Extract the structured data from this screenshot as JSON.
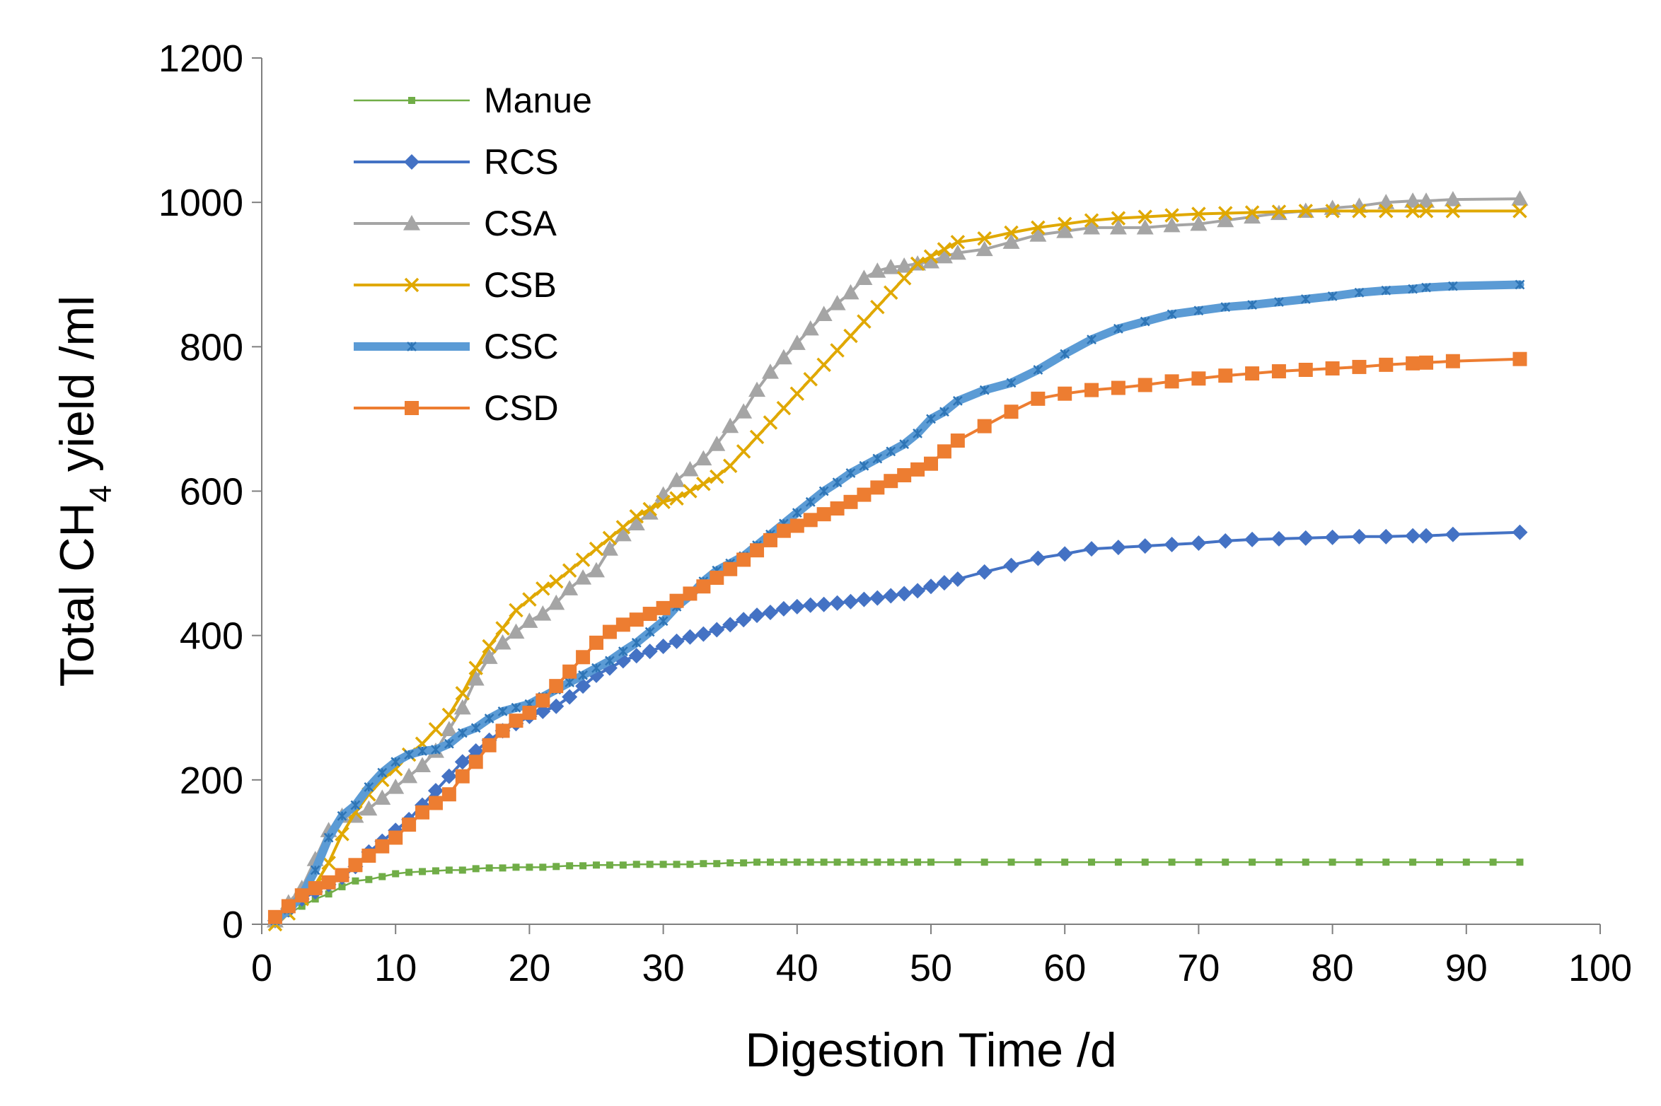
{
  "chart_data": {
    "type": "line",
    "title": "",
    "xlabel": "Digestion Time  /d",
    "ylabel_parts": {
      "main": "Total CH",
      "sub": "4",
      "rest": " yield /ml"
    },
    "xlim": [
      0,
      100
    ],
    "ylim": [
      0,
      1200
    ],
    "xticks": [
      0,
      10,
      20,
      30,
      40,
      50,
      60,
      70,
      80,
      90,
      100
    ],
    "yticks": [
      0,
      200,
      400,
      600,
      800,
      1000,
      1200
    ],
    "grid": false,
    "legend_position": "top-left",
    "series": [
      {
        "name": "Manue",
        "color": "#70AD47",
        "marker": "square-small",
        "x": [
          1,
          2,
          3,
          4,
          5,
          6,
          7,
          8,
          9,
          10,
          11,
          12,
          13,
          14,
          15,
          16,
          17,
          18,
          19,
          20,
          21,
          22,
          23,
          24,
          25,
          26,
          27,
          28,
          29,
          30,
          31,
          32,
          33,
          34,
          35,
          36,
          37,
          38,
          39,
          40,
          41,
          42,
          43,
          44,
          45,
          46,
          47,
          48,
          49,
          50,
          52,
          54,
          56,
          58,
          60,
          62,
          64,
          66,
          68,
          70,
          72,
          74,
          76,
          78,
          80,
          82,
          84,
          86,
          88,
          90,
          92,
          94
        ],
        "values": [
          5,
          15,
          25,
          35,
          42,
          52,
          60,
          62,
          66,
          70,
          72,
          73,
          74,
          75,
          75,
          77,
          78,
          78,
          79,
          79,
          79,
          80,
          81,
          81,
          82,
          82,
          82,
          83,
          83,
          83,
          83,
          83,
          84,
          84,
          85,
          85,
          86,
          86,
          86,
          86,
          86,
          86,
          86,
          86,
          86,
          86,
          86,
          86,
          86,
          86,
          86,
          86,
          86,
          86,
          86,
          86,
          86,
          86,
          86,
          86,
          86,
          86,
          86,
          86,
          86,
          86,
          86,
          86,
          86,
          86,
          86,
          86
        ]
      },
      {
        "name": "RCS",
        "color": "#4472C4",
        "marker": "diamond",
        "x": [
          1,
          2,
          3,
          4,
          5,
          6,
          7,
          8,
          9,
          10,
          11,
          12,
          13,
          14,
          15,
          16,
          17,
          18,
          19,
          20,
          21,
          22,
          23,
          24,
          25,
          26,
          27,
          28,
          29,
          30,
          31,
          32,
          33,
          34,
          35,
          36,
          37,
          38,
          39,
          40,
          41,
          42,
          43,
          44,
          45,
          46,
          47,
          48,
          49,
          50,
          51,
          52,
          54,
          56,
          58,
          60,
          62,
          64,
          66,
          68,
          70,
          72,
          74,
          76,
          78,
          80,
          82,
          84,
          86,
          87,
          89,
          94
        ],
        "values": [
          5,
          20,
          35,
          45,
          55,
          65,
          80,
          100,
          115,
          130,
          145,
          165,
          185,
          205,
          225,
          240,
          255,
          268,
          278,
          288,
          295,
          302,
          315,
          330,
          345,
          355,
          365,
          372,
          378,
          385,
          392,
          398,
          402,
          408,
          415,
          422,
          428,
          432,
          437,
          440,
          442,
          443,
          445,
          447,
          450,
          452,
          455,
          458,
          462,
          468,
          473,
          478,
          488,
          497,
          507,
          513,
          520,
          522,
          524,
          526,
          528,
          531,
          533,
          534,
          535,
          536,
          537,
          537,
          538,
          538,
          540,
          543
        ]
      },
      {
        "name": "CSA",
        "color": "#A5A5A5",
        "marker": "triangle",
        "x": [
          1,
          2,
          3,
          4,
          5,
          6,
          7,
          8,
          9,
          10,
          11,
          12,
          13,
          14,
          15,
          16,
          17,
          18,
          19,
          20,
          21,
          22,
          23,
          24,
          25,
          26,
          27,
          28,
          29,
          30,
          31,
          32,
          33,
          34,
          35,
          36,
          37,
          38,
          39,
          40,
          41,
          42,
          43,
          44,
          45,
          46,
          47,
          48,
          49,
          50,
          51,
          52,
          54,
          56,
          58,
          60,
          62,
          64,
          66,
          68,
          70,
          72,
          74,
          76,
          78,
          80,
          82,
          84,
          86,
          87,
          89,
          94
        ],
        "values": [
          5,
          30,
          50,
          90,
          130,
          150,
          150,
          160,
          175,
          190,
          205,
          220,
          240,
          270,
          300,
          340,
          370,
          390,
          405,
          420,
          430,
          445,
          465,
          480,
          490,
          520,
          540,
          555,
          570,
          595,
          615,
          630,
          645,
          665,
          690,
          710,
          740,
          765,
          785,
          805,
          825,
          845,
          860,
          875,
          895,
          905,
          910,
          912,
          915,
          918,
          925,
          930,
          935,
          945,
          955,
          960,
          965,
          965,
          965,
          968,
          970,
          975,
          980,
          985,
          988,
          992,
          995,
          1000,
          1002,
          1002,
          1004,
          1005
        ]
      },
      {
        "name": "CSB",
        "color": "#E0A800",
        "marker": "x",
        "x": [
          1,
          2,
          3,
          4,
          5,
          6,
          7,
          8,
          9,
          10,
          11,
          12,
          13,
          14,
          15,
          16,
          17,
          18,
          19,
          20,
          21,
          22,
          23,
          24,
          25,
          26,
          27,
          28,
          29,
          30,
          31,
          32,
          33,
          34,
          35,
          36,
          37,
          38,
          39,
          40,
          41,
          42,
          43,
          44,
          45,
          46,
          47,
          48,
          49,
          50,
          51,
          52,
          54,
          56,
          58,
          60,
          62,
          64,
          66,
          68,
          70,
          72,
          74,
          76,
          78,
          80,
          82,
          84,
          86,
          87,
          89,
          94
        ],
        "values": [
          0,
          15,
          35,
          55,
          85,
          125,
          155,
          180,
          200,
          215,
          235,
          250,
          270,
          290,
          320,
          355,
          385,
          410,
          435,
          450,
          465,
          475,
          490,
          505,
          520,
          535,
          550,
          565,
          575,
          585,
          590,
          600,
          610,
          620,
          635,
          655,
          675,
          695,
          715,
          735,
          755,
          775,
          795,
          815,
          835,
          855,
          875,
          895,
          915,
          925,
          935,
          945,
          950,
          958,
          965,
          970,
          975,
          978,
          980,
          982,
          984,
          985,
          986,
          987,
          988,
          988,
          988,
          988,
          988,
          988,
          988,
          988
        ]
      },
      {
        "name": "CSC",
        "color": "#5B9BD5",
        "marker": "star-small",
        "thick": true,
        "x": [
          1,
          2,
          3,
          4,
          5,
          6,
          7,
          8,
          9,
          10,
          11,
          12,
          13,
          14,
          15,
          16,
          17,
          18,
          19,
          20,
          21,
          22,
          23,
          24,
          25,
          26,
          27,
          28,
          29,
          30,
          31,
          32,
          33,
          34,
          35,
          36,
          37,
          38,
          39,
          40,
          41,
          42,
          43,
          44,
          45,
          46,
          47,
          48,
          49,
          50,
          51,
          52,
          54,
          56,
          58,
          60,
          62,
          64,
          66,
          68,
          70,
          72,
          74,
          76,
          78,
          80,
          82,
          84,
          86,
          87,
          89,
          94
        ],
        "values": [
          5,
          20,
          40,
          75,
          120,
          150,
          165,
          190,
          210,
          225,
          235,
          240,
          242,
          250,
          265,
          272,
          285,
          295,
          300,
          305,
          315,
          325,
          335,
          345,
          355,
          365,
          378,
          390,
          405,
          420,
          440,
          455,
          475,
          490,
          500,
          510,
          525,
          540,
          555,
          570,
          585,
          600,
          612,
          625,
          635,
          645,
          655,
          665,
          680,
          700,
          710,
          725,
          740,
          750,
          768,
          790,
          810,
          825,
          835,
          845,
          850,
          855,
          858,
          862,
          866,
          870,
          875,
          878,
          880,
          882,
          884,
          886
        ]
      },
      {
        "name": "CSD",
        "color": "#ED7D31",
        "marker": "square",
        "x": [
          1,
          2,
          3,
          4,
          5,
          6,
          7,
          8,
          9,
          10,
          11,
          12,
          13,
          14,
          15,
          16,
          17,
          18,
          19,
          20,
          21,
          22,
          23,
          24,
          25,
          26,
          27,
          28,
          29,
          30,
          31,
          32,
          33,
          34,
          35,
          36,
          37,
          38,
          39,
          40,
          41,
          42,
          43,
          44,
          45,
          46,
          47,
          48,
          49,
          50,
          51,
          52,
          54,
          56,
          58,
          60,
          62,
          64,
          66,
          68,
          70,
          72,
          74,
          76,
          78,
          80,
          82,
          84,
          86,
          87,
          89,
          94
        ],
        "values": [
          10,
          25,
          40,
          50,
          58,
          68,
          82,
          95,
          108,
          120,
          138,
          155,
          168,
          180,
          205,
          225,
          248,
          268,
          282,
          293,
          310,
          330,
          350,
          370,
          390,
          405,
          415,
          422,
          430,
          438,
          448,
          458,
          468,
          480,
          492,
          505,
          518,
          532,
          545,
          552,
          560,
          568,
          576,
          585,
          595,
          605,
          614,
          622,
          630,
          638,
          655,
          670,
          690,
          710,
          728,
          735,
          740,
          743,
          747,
          752,
          756,
          760,
          763,
          766,
          768,
          770,
          772,
          775,
          777,
          778,
          780,
          783
        ]
      }
    ]
  }
}
